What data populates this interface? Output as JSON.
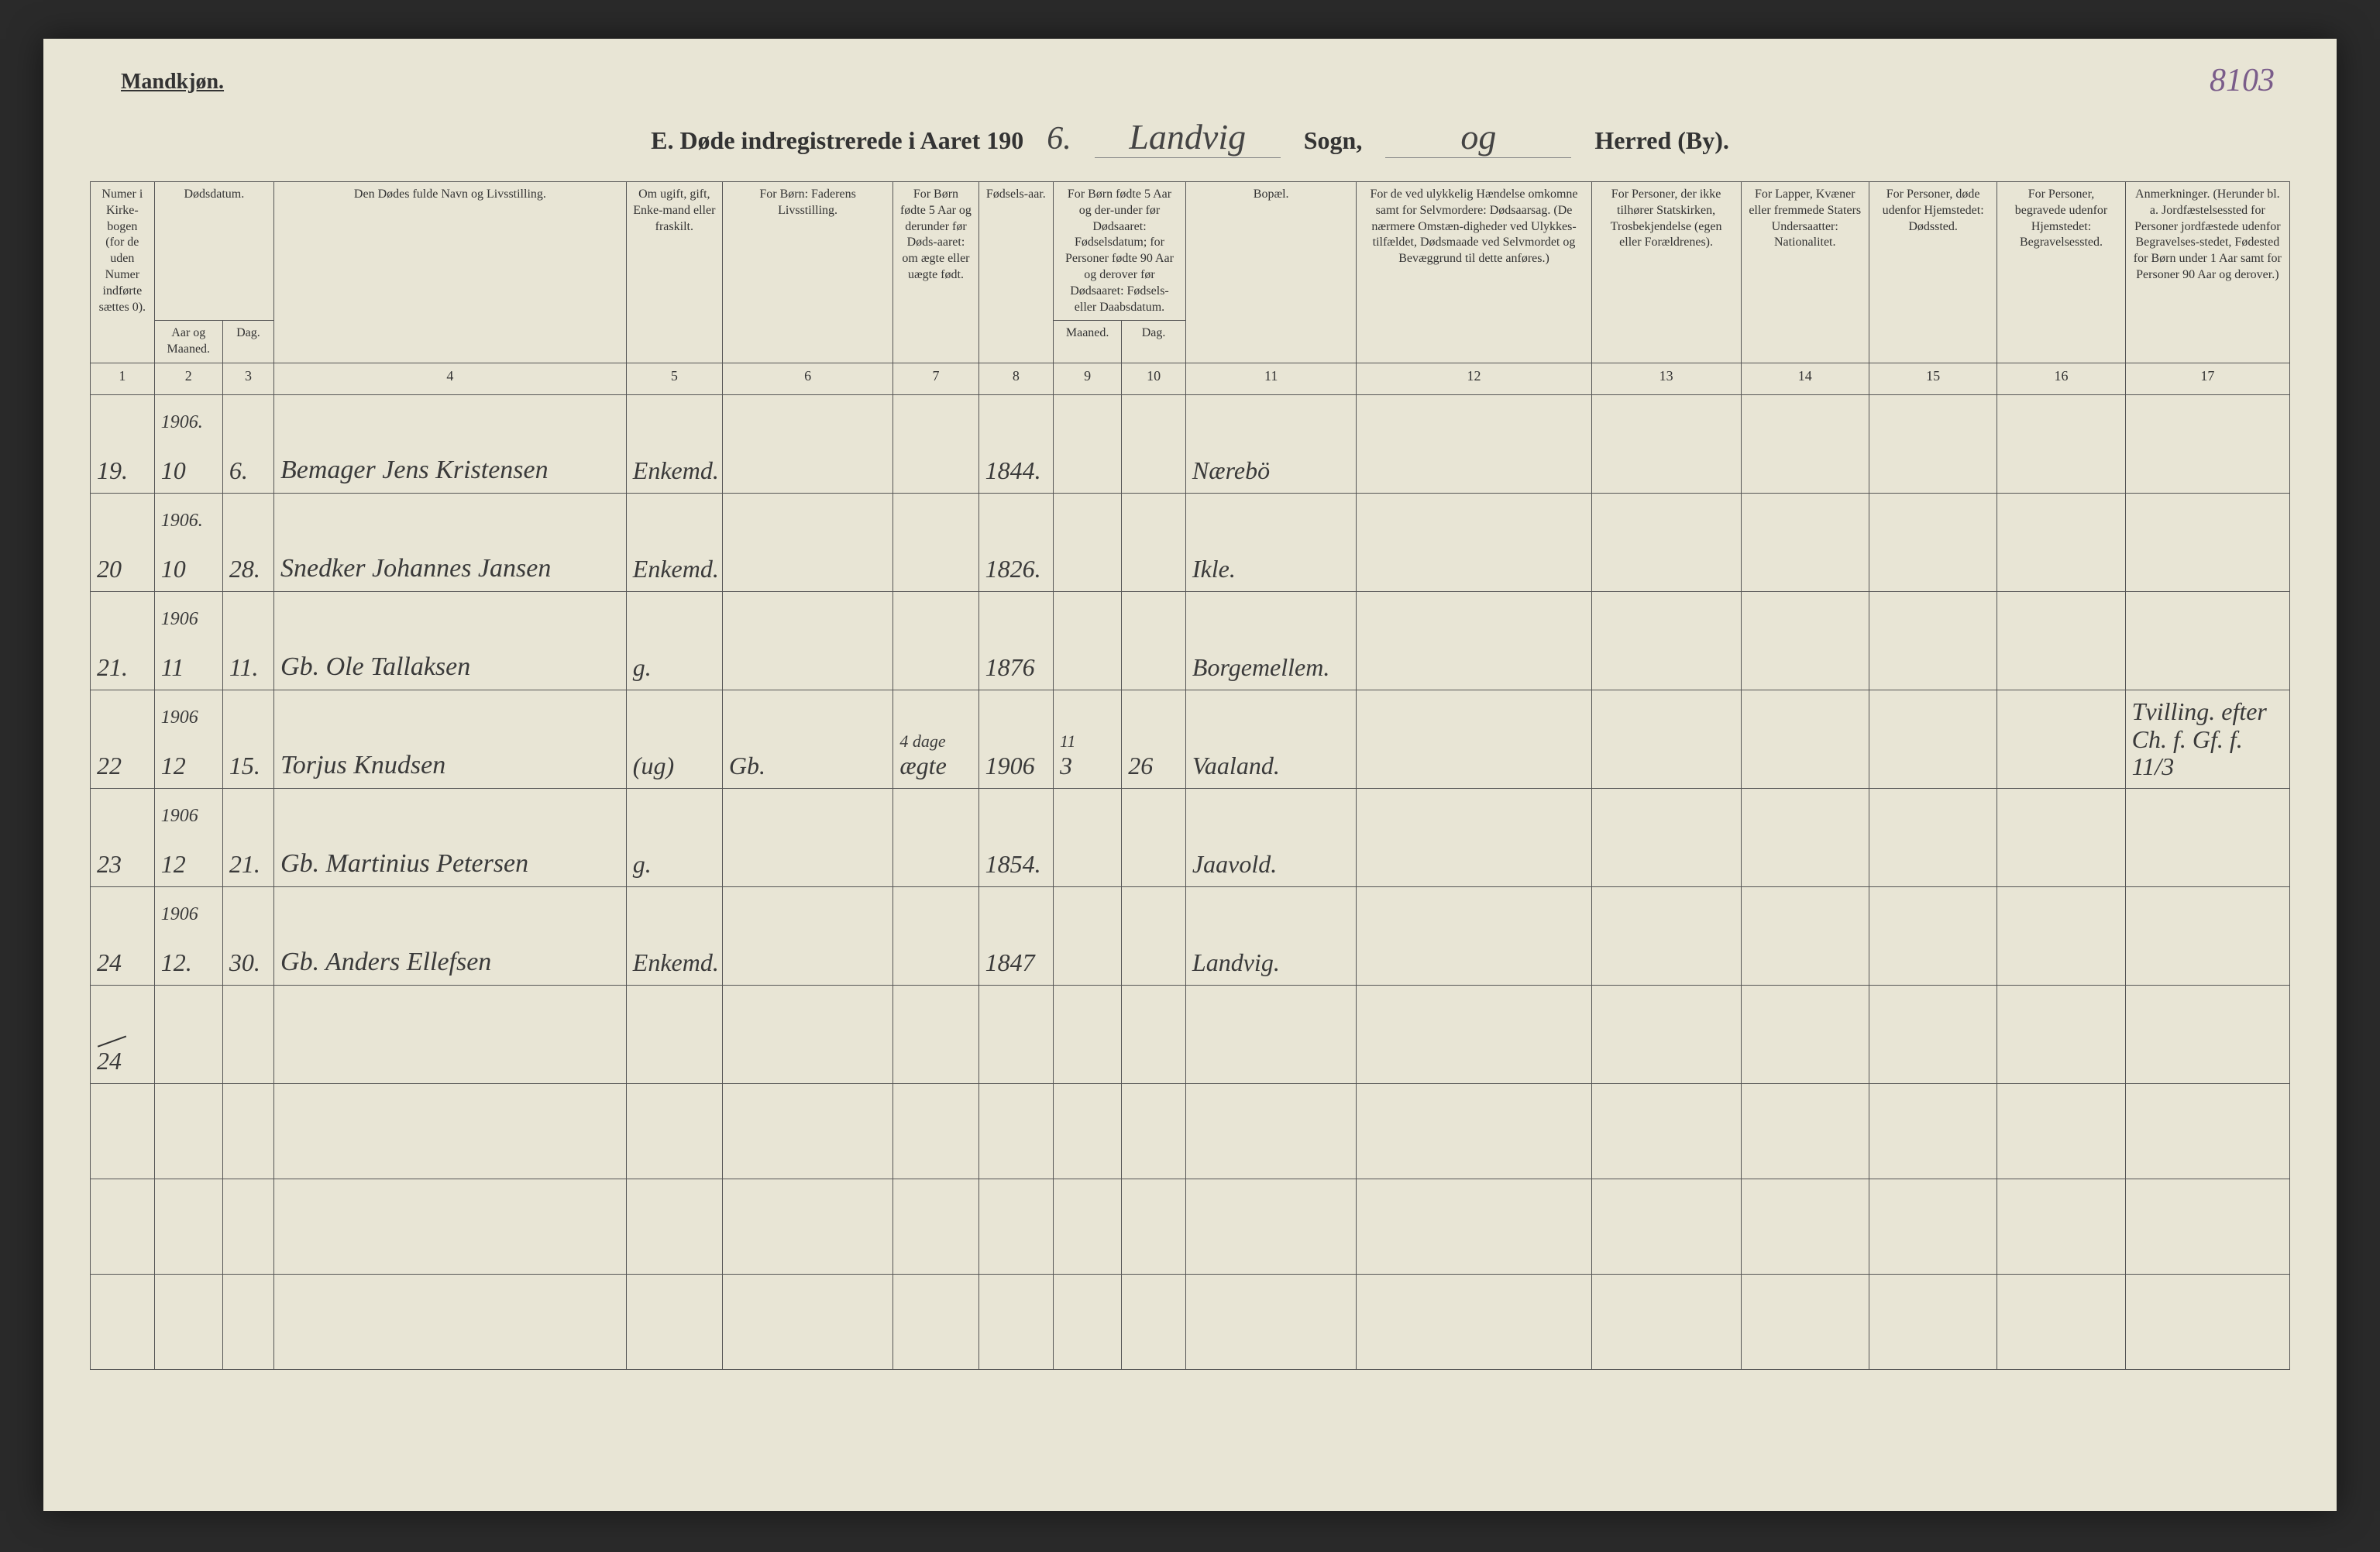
{
  "corner_label": "Mandkjøn.",
  "page_number": "8103",
  "title": {
    "prefix": "E.  Døde indregistrerede i Aaret 190",
    "year_suffix": "6.",
    "parish_written": "Landvig",
    "sogn_label": "Sogn,",
    "district_written": "og",
    "herred_label": "Herred (By)."
  },
  "headers": {
    "c1": "Numer i Kirke-bogen (for de uden Numer indførte sættes 0).",
    "c2_top": "Dødsdatum.",
    "c2a": "Aar og Maaned.",
    "c2b": "Dag.",
    "c4": "Den Dødes fulde Navn og Livsstilling.",
    "c5": "Om ugift, gift, Enke-mand eller fraskilt.",
    "c6": "For Børn: Faderens Livsstilling.",
    "c7": "For Børn fødte 5 Aar og derunder før Døds-aaret: om ægte eller uægte født.",
    "c8": "Fødsels-aar.",
    "c9_top": "For Børn fødte 5 Aar og der-under før Dødsaaret: Fødselsdatum; for Personer fødte 90 Aar og derover før Dødsaaret: Fødsels- eller Daabsdatum.",
    "c9a": "Maaned.",
    "c9b": "Dag.",
    "c11": "Bopæl.",
    "c12": "For de ved ulykkelig Hændelse omkomne samt for Selvmordere: Dødsaarsag. (De nærmere Omstæn-digheder ved Ulykkes-tilfældet, Dødsmaade ved Selvmordet og Bevæggrund til dette anføres.)",
    "c13": "For Personer, der ikke tilhører Statskirken, Trosbekjendelse (egen eller Forældrenes).",
    "c14": "For Lapper, Kvæner eller fremmede Staters Undersaatter: Nationalitet.",
    "c15": "For Personer, døde udenfor Hjemstedet: Dødssted.",
    "c16": "For Personer, begravede udenfor Hjemstedet: Begravelsessted.",
    "c17": "Anmerkninger. (Herunder bl. a. Jordfæstelsessted for Personer jordfæstede udenfor Begravelses-stedet, Fødested for Børn under 1 Aar samt for Personer 90 Aar og derover.)"
  },
  "colnums": [
    "1",
    "2",
    "3",
    "4",
    "5",
    "6",
    "7",
    "8",
    "9",
    "10",
    "11",
    "12",
    "13",
    "14",
    "15",
    "16",
    "17"
  ],
  "rows": [
    {
      "num": "19.",
      "year": "1906.",
      "month": "10",
      "day": "6.",
      "name": "Bemager Jens Kristensen",
      "status": "Enkemd.",
      "father": "",
      "legit": "",
      "birthyear": "1844.",
      "bmonth": "",
      "bday": "",
      "residence": "Nærebö",
      "c12": "",
      "c13": "",
      "c14": "",
      "c15": "",
      "c16": "",
      "c17": ""
    },
    {
      "num": "20",
      "year": "1906.",
      "month": "10",
      "day": "28.",
      "name": "Snedker Johannes Jansen",
      "status": "Enkemd.",
      "father": "",
      "legit": "",
      "birthyear": "1826.",
      "bmonth": "",
      "bday": "",
      "residence": "Ikle.",
      "c12": "",
      "c13": "",
      "c14": "",
      "c15": "",
      "c16": "",
      "c17": ""
    },
    {
      "num": "21.",
      "year": "1906",
      "month": "11",
      "day": "11.",
      "name": "Gb. Ole Tallaksen",
      "status": "g.",
      "father": "",
      "legit": "",
      "birthyear": "1876",
      "bmonth": "",
      "bday": "",
      "residence": "Borgemellem.",
      "c12": "",
      "c13": "",
      "c14": "",
      "c15": "",
      "c16": "",
      "c17": ""
    },
    {
      "num": "22",
      "purple": true,
      "year": "1906",
      "month": "12",
      "day": "15.",
      "name": "Torjus Knudsen",
      "status": "(ug)",
      "father": "Gb.",
      "legit": "ægte",
      "legit_above": "4 dage",
      "birthyear": "1906",
      "bmonth": "3",
      "bmonth_above": "11",
      "bday": "26",
      "residence": "Vaaland.",
      "c12": "",
      "c13": "",
      "c14": "",
      "c15": "",
      "c16": "",
      "c17": "Tvilling. efter Ch. f. Gf. f. 11/3"
    },
    {
      "num": "23",
      "year": "1906",
      "month": "12",
      "day": "21.",
      "name": "Gb. Martinius Petersen",
      "status": "g.",
      "father": "",
      "legit": "",
      "birthyear": "1854.",
      "bmonth": "",
      "bday": "",
      "residence": "Jaavold.",
      "c12": "",
      "c13": "",
      "c14": "",
      "c15": "",
      "c16": "",
      "c17": ""
    },
    {
      "num": "24",
      "year": "1906",
      "month": "12.",
      "day": "30.",
      "name": "Gb. Anders Ellefsen",
      "status": "Enkemd.",
      "father": "",
      "legit": "",
      "birthyear": "1847",
      "bmonth": "",
      "bday": "",
      "residence": "Landvig.",
      "c12": "",
      "c13": "",
      "c14": "",
      "c15": "",
      "c16": "",
      "c17": ""
    }
  ],
  "total_row": "24",
  "colors": {
    "paper": "#e8e5d5",
    "ink": "#3a3a3a",
    "purple": "#6b4a8a",
    "border": "#555555"
  },
  "colwidths_pct": [
    3.0,
    3.2,
    2.4,
    16.5,
    4.5,
    8.0,
    4.0,
    3.5,
    3.2,
    3.0,
    8.0,
    11.0,
    7.0,
    6.0,
    6.0,
    6.0,
    7.7
  ]
}
